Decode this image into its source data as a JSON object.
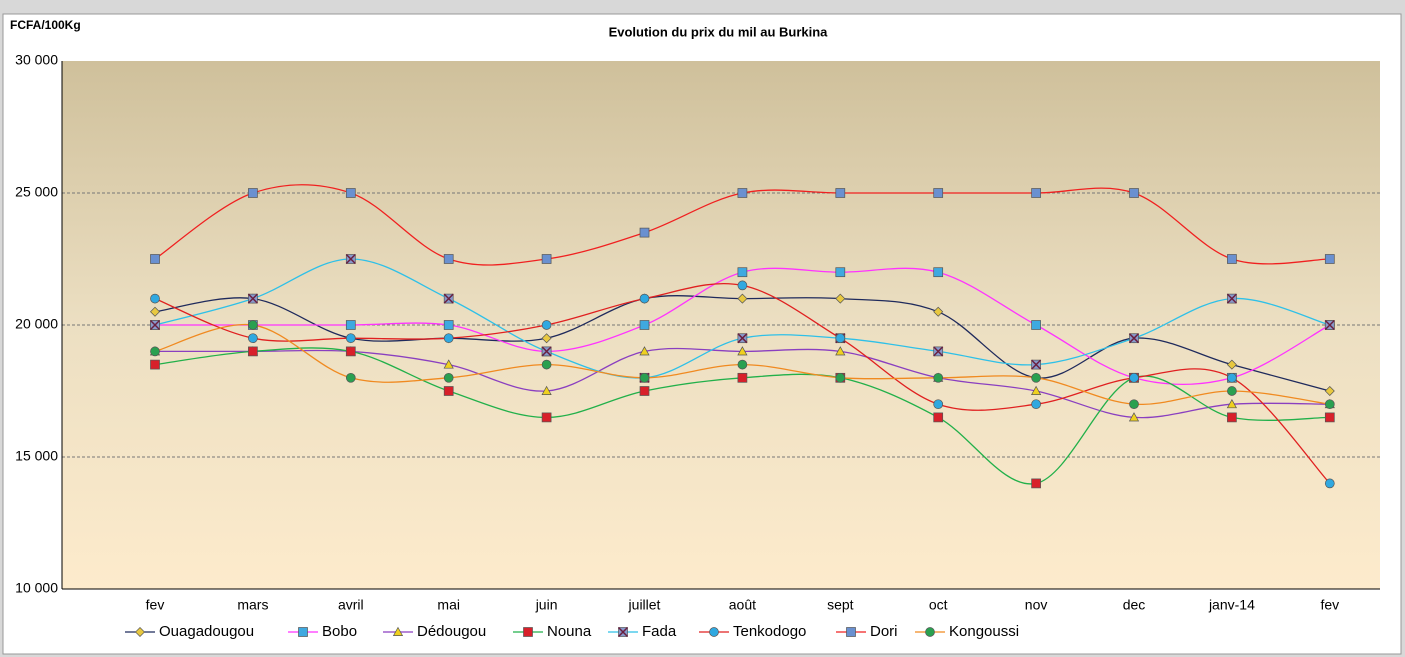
{
  "chart_data": {
    "type": "line",
    "title": "Evolution du prix du mil au Burkina",
    "y_label": "FCFA/100Kg",
    "categories": [
      "fev",
      "mars",
      "avril",
      "mai",
      "juin",
      "juillet",
      "août",
      "sept",
      "oct",
      "nov",
      "dec",
      "janv-14",
      "fev"
    ],
    "ylim": [
      10000,
      30000
    ],
    "yticks": [
      {
        "value": 10000,
        "label": "10 000"
      },
      {
        "value": 15000,
        "label": "15 000"
      },
      {
        "value": 20000,
        "label": "20 000"
      },
      {
        "value": 25000,
        "label": "25 000"
      },
      {
        "value": 30000,
        "label": "30 000"
      }
    ],
    "grid": true,
    "smooth": true,
    "legend": "bottom",
    "series": [
      {
        "name": "Ouagadougou",
        "color": "#1f2a5c",
        "marker": "diamond",
        "marker_color": "#e8c840",
        "values": [
          20500,
          21000,
          19500,
          19500,
          19500,
          21000,
          21000,
          21000,
          20500,
          18000,
          19500,
          18500,
          17500
        ]
      },
      {
        "name": "Bobo",
        "color": "#ff33ff",
        "marker": "square",
        "marker_color": "#3fa9e0",
        "values": [
          20000,
          20000,
          20000,
          20000,
          19000,
          20000,
          22000,
          22000,
          22000,
          20000,
          18000,
          18000,
          20000
        ]
      },
      {
        "name": "Dédougou",
        "color": "#8a3fc0",
        "marker": "triangle",
        "marker_color": "#f0d020",
        "values": [
          19000,
          19000,
          19000,
          18500,
          17500,
          19000,
          19000,
          19000,
          18000,
          17500,
          16500,
          17000,
          17000
        ]
      },
      {
        "name": "Nouna",
        "color": "#22b04a",
        "marker": "square",
        "marker_color": "#d8202a",
        "values": [
          18500,
          19000,
          19000,
          17500,
          16500,
          17500,
          18000,
          18000,
          16500,
          14000,
          18000,
          16500,
          16500
        ]
      },
      {
        "name": "Fada",
        "color": "#2ec0e8",
        "marker": "x",
        "marker_color": "#6a2040",
        "values": [
          20000,
          21000,
          22500,
          21000,
          19000,
          18000,
          19500,
          19500,
          19000,
          18500,
          19500,
          21000,
          20000
        ]
      },
      {
        "name": "Tenkodogo",
        "color": "#e02020",
        "marker": "circle",
        "marker_color": "#30a8e0",
        "values": [
          21000,
          19500,
          19500,
          19500,
          20000,
          21000,
          21500,
          19500,
          17000,
          17000,
          18000,
          18000,
          14000
        ]
      },
      {
        "name": "Dori",
        "color": "#f02020",
        "marker": "square",
        "marker_color": "#6a90d0",
        "values": [
          22500,
          25000,
          25000,
          22500,
          22500,
          23500,
          25000,
          25000,
          25000,
          25000,
          25000,
          22500,
          22500
        ]
      },
      {
        "name": "Kongoussi",
        "color": "#f08a20",
        "marker": "circle",
        "marker_color": "#2aa050",
        "values": [
          19000,
          20000,
          18000,
          18000,
          18500,
          18000,
          18500,
          18000,
          18000,
          18000,
          17000,
          17500,
          17000
        ]
      }
    ]
  }
}
